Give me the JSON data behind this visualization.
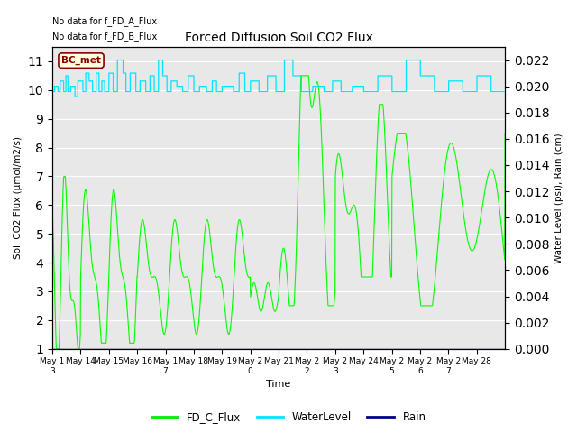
{
  "title": "Forced Diffusion Soil CO2 Flux",
  "xlabel": "Time",
  "ylabel_left": "Soil CO2 Flux (μmol/m2/s)",
  "ylabel_right": "Water Level (psi), Rain (cm)",
  "text_no_data_1": "No data for f_FD_A_Flux",
  "text_no_data_2": "No data for f_FD_B_Flux",
  "bc_met_label": "BC_met",
  "ylim_left": [
    1.0,
    11.5
  ],
  "ylim_right": [
    0.0,
    0.023
  ],
  "yticks_left": [
    1.0,
    2.0,
    3.0,
    4.0,
    5.0,
    6.0,
    7.0,
    8.0,
    9.0,
    10.0,
    11.0
  ],
  "yticks_right": [
    0.0,
    0.002,
    0.004,
    0.006,
    0.008,
    0.01,
    0.012,
    0.014,
    0.016,
    0.018,
    0.02,
    0.022
  ],
  "x_tick_labels": [
    "May 1\n3",
    "May 14",
    "May 15",
    "May 16",
    "May 1\n7",
    "May 18",
    "May 19",
    "May 2\n0",
    "May 21",
    "May 2\n2",
    "May 2\n3",
    "May 24",
    "May 2\n5",
    "May 2\n6",
    "May 2\n7",
    "May 28"
  ],
  "bg_color": "#e8e8e8",
  "flux_color": "#00ff00",
  "water_color": "#00e5ff",
  "rain_color": "#00008b",
  "legend_colors": [
    "#00ee00",
    "#00e5ff",
    "#00008b"
  ],
  "legend_entries": [
    "FD_C_Flux",
    "WaterLevel",
    "Rain"
  ]
}
